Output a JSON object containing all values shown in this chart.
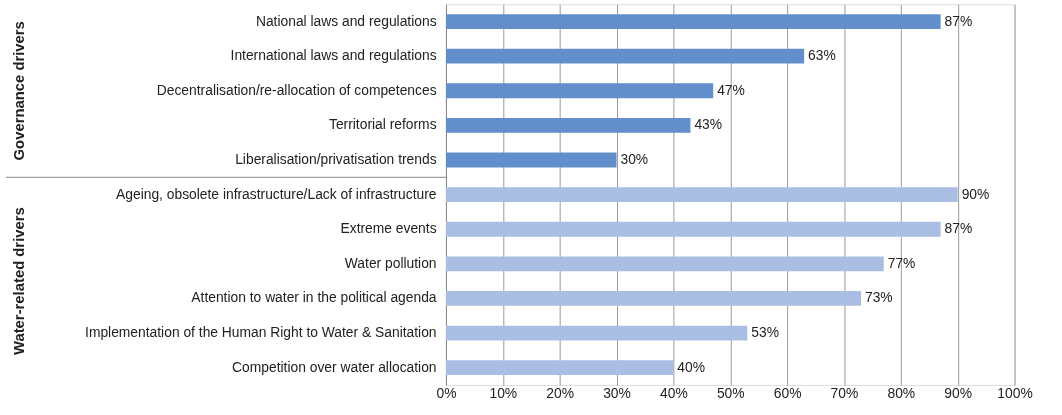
{
  "chart_data": {
    "type": "bar",
    "orientation": "horizontal",
    "categories": [
      "National laws and regulations",
      "International laws and regulations",
      "Decentralisation/re-allocation of competences",
      "Territorial reforms",
      "Liberalisation/privatisation trends",
      "Ageing, obsolete infrastructure/Lack of infrastructure",
      "Extreme events",
      "Water pollution",
      "Attention to water in the political agenda",
      "Implementation of the Human Right to Water & Sanitation",
      "Competition over water allocation"
    ],
    "values": [
      87,
      63,
      47,
      43,
      30,
      90,
      87,
      77,
      73,
      53,
      40
    ],
    "colors": [
      "#628fcc",
      "#628fcc",
      "#628fcc",
      "#628fcc",
      "#628fcc",
      "#aabde3",
      "#aabde3",
      "#aabde3",
      "#aabde3",
      "#aabde3",
      "#aabde3"
    ],
    "value_labels": [
      "87%",
      "63%",
      "47%",
      "43%",
      "30%",
      "90%",
      "87%",
      "77%",
      "73%",
      "53%",
      "40%"
    ],
    "xlim": [
      0,
      100
    ],
    "xticks": [
      {
        "value": 0,
        "label": "0%"
      },
      {
        "value": 10,
        "label": "10%"
      },
      {
        "value": 20,
        "label": "20%"
      },
      {
        "value": 30,
        "label": "30%"
      },
      {
        "value": 40,
        "label": "40%"
      },
      {
        "value": 50,
        "label": "50%"
      },
      {
        "value": 60,
        "label": "60%"
      },
      {
        "value": 70,
        "label": "70%"
      },
      {
        "value": 80,
        "label": "80%"
      },
      {
        "value": 90,
        "label": "90%"
      },
      {
        "value": 100,
        "label": "100%"
      }
    ],
    "grid": "x",
    "annotations": [
      "Governance drivers",
      "Water-related drivers"
    ]
  }
}
